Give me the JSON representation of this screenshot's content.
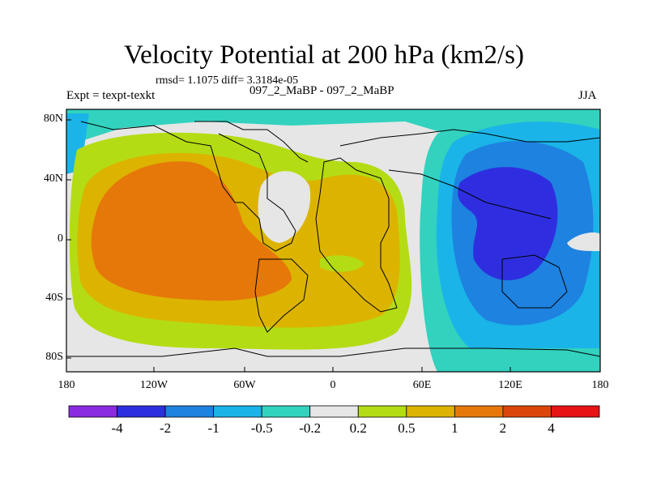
{
  "title": "Velocity Potential at 200 hPa (km2/s)",
  "stats": "rmsd= 1.1075 diff= 3.3184e-05",
  "experiment": "Expt = texpt-texkt",
  "runs": "097_2_MaBP - 097_2_MaBP",
  "season": "JJA",
  "lat_labels": [
    "80N",
    "40N",
    "0",
    "40S",
    "80S"
  ],
  "lon_labels": [
    "180",
    "120W",
    "60W",
    "0",
    "60E",
    "120E",
    "180"
  ],
  "colorbar": {
    "colors": [
      "#8a2be2",
      "#2e2ee0",
      "#1e82e0",
      "#1ab4e8",
      "#32d2be",
      "#e6e6e6",
      "#b4dc14",
      "#dcb400",
      "#e6780a",
      "#dc460a",
      "#e61414"
    ],
    "labels": [
      "-4",
      "-2",
      "-1",
      "-0.5",
      "-0.2",
      "0.2",
      "0.5",
      "1",
      "2",
      "4"
    ]
  }
}
